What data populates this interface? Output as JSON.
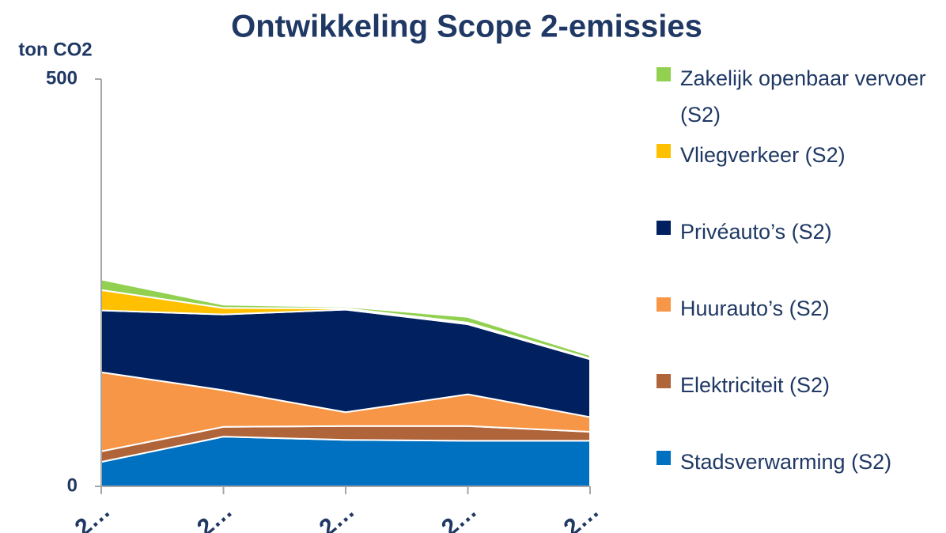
{
  "chart_data": {
    "type": "stacked_area",
    "title": "Ontwikkeling Scope 2-emissies",
    "y_label": "ton CO2",
    "categories": [
      "2…",
      "2…",
      "2…",
      "2…",
      "2…"
    ],
    "ylim": [
      0,
      500
    ],
    "yticks": [
      0,
      500
    ],
    "series": [
      {
        "name": "Stadsverwarming (S2)",
        "color": "#0070c0",
        "values": [
          30,
          61,
          57,
          56,
          56
        ]
      },
      {
        "name": "Elektriciteit (S2)",
        "color": "#b0643a",
        "values": [
          13,
          12,
          17,
          18,
          11
        ]
      },
      {
        "name": "Huurauto’s (S2)",
        "color": "#f79646",
        "values": [
          97,
          45,
          17,
          39,
          18
        ]
      },
      {
        "name": "Privéauto’s (S2)",
        "color": "#002060",
        "values": [
          76,
          93,
          126,
          86,
          71
        ]
      },
      {
        "name": "Vliegverkeer (S2)",
        "color": "#ffc000",
        "values": [
          25,
          8,
          1.5,
          2,
          1
        ]
      },
      {
        "name": "Zakelijk openbaar vervoer (S2)",
        "color": "#92d050",
        "values": [
          13,
          4,
          2,
          7,
          4
        ]
      }
    ]
  }
}
